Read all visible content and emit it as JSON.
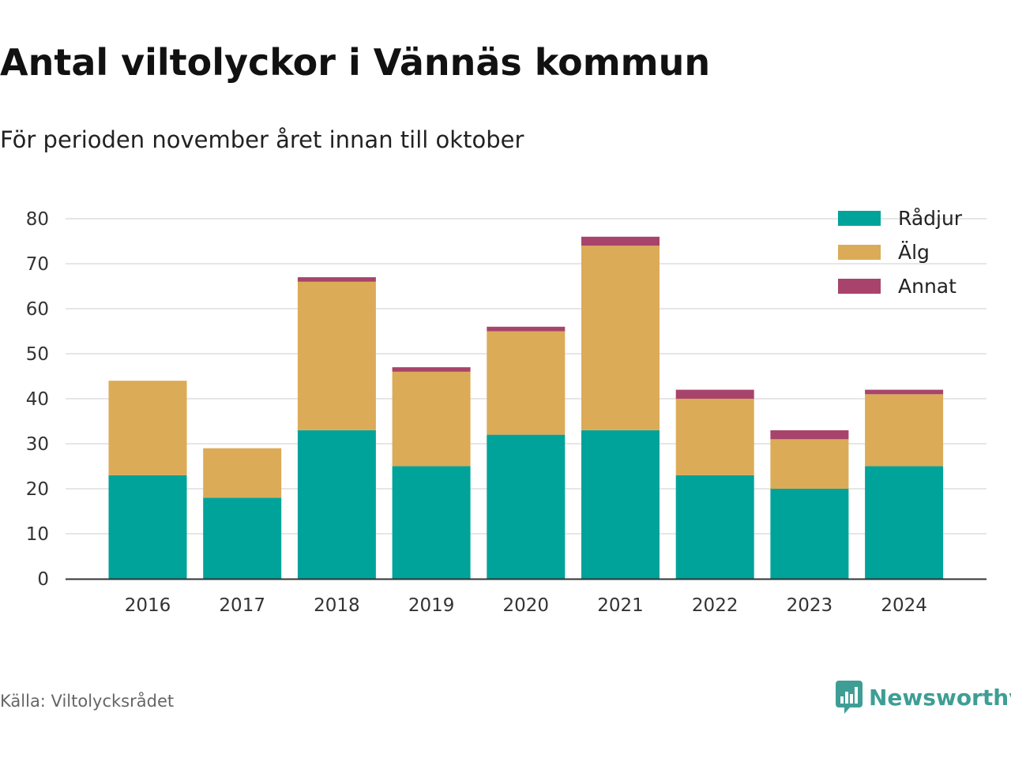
{
  "header": {
    "title": "Antal viltolyckor i Vännäs kommun",
    "subtitle": "För perioden november året innan till oktober"
  },
  "footer": {
    "source": "Källa: Viltolycksrådet",
    "brand": "Newsworthy",
    "brand_icon": "bar-chart-speech-bubble-icon",
    "brand_color": "#3e9e95"
  },
  "chart_data": {
    "type": "bar",
    "stacked": true,
    "categories": [
      "2016",
      "2017",
      "2018",
      "2019",
      "2020",
      "2021",
      "2022",
      "2023",
      "2024"
    ],
    "series": [
      {
        "name": "Rådjur",
        "color": "#00a39a",
        "values": [
          23,
          18,
          33,
          25,
          32,
          33,
          23,
          20,
          25
        ]
      },
      {
        "name": "Älg",
        "color": "#dbab58",
        "values": [
          21,
          11,
          33,
          21,
          23,
          41,
          17,
          11,
          16
        ]
      },
      {
        "name": "Annat",
        "color": "#a8446b",
        "values": [
          0,
          0,
          1,
          1,
          1,
          2,
          2,
          2,
          1
        ]
      }
    ],
    "yticks": [
      0,
      10,
      20,
      30,
      40,
      50,
      60,
      70,
      80
    ],
    "ylim": [
      0,
      80
    ],
    "grid": true,
    "legend_position": "top-right"
  }
}
